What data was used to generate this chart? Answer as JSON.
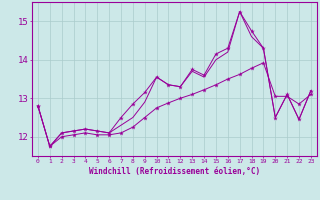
{
  "xlabel": "Windchill (Refroidissement éolien,°C)",
  "background_color": "#cce8e8",
  "grid_color": "#aacccc",
  "line_color": "#990099",
  "x": [
    0,
    1,
    2,
    3,
    4,
    5,
    6,
    7,
    8,
    9,
    10,
    11,
    12,
    13,
    14,
    15,
    16,
    17,
    18,
    19,
    20,
    21,
    22,
    23
  ],
  "line1": [
    12.8,
    11.75,
    12.1,
    12.15,
    12.2,
    12.15,
    12.1,
    12.5,
    12.85,
    13.15,
    13.55,
    13.35,
    13.3,
    13.75,
    13.6,
    14.15,
    14.3,
    15.25,
    14.75,
    14.3,
    12.5,
    13.1,
    12.45,
    13.2
  ],
  "line2": [
    12.8,
    11.75,
    12.1,
    12.15,
    12.2,
    12.15,
    12.1,
    12.3,
    12.5,
    12.9,
    13.55,
    13.35,
    13.3,
    13.7,
    13.55,
    14.0,
    14.2,
    15.25,
    14.6,
    14.3,
    12.5,
    13.1,
    12.45,
    13.2
  ],
  "line3": [
    12.8,
    11.75,
    12.0,
    12.05,
    12.1,
    12.05,
    12.05,
    12.1,
    12.25,
    12.5,
    12.75,
    12.88,
    13.0,
    13.1,
    13.22,
    13.35,
    13.5,
    13.62,
    13.78,
    13.92,
    13.05,
    13.05,
    12.85,
    13.1
  ],
  "ylim": [
    11.5,
    15.5
  ],
  "yticks": [
    12,
    13,
    14,
    15
  ],
  "xlim": [
    -0.5,
    23.5
  ]
}
